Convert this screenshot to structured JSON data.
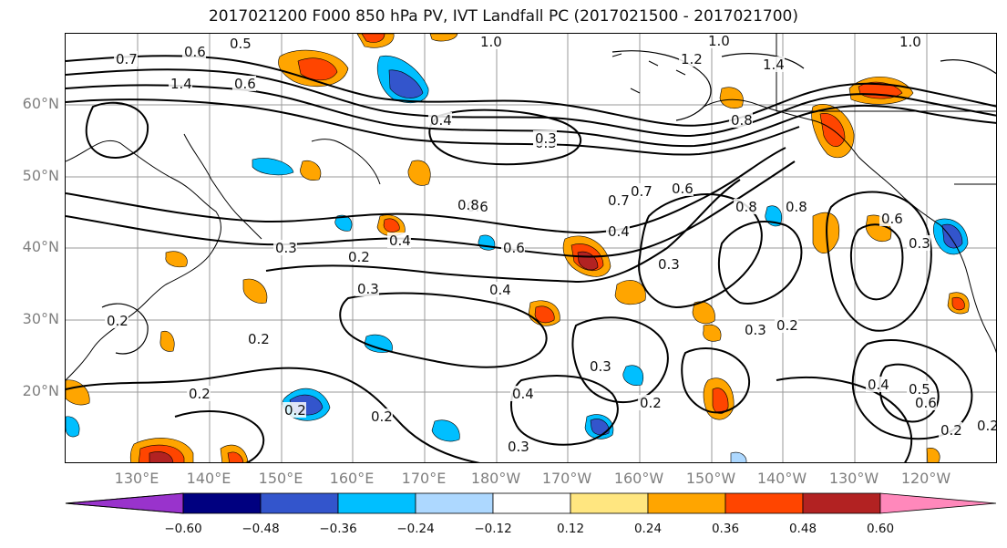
{
  "title": "2017021200 F000 850 hPa PV, IVT Landfall PC (2017021500 - 2017021700)",
  "latitude_labels": [
    "60°N",
    "50°N",
    "40°N",
    "30°N",
    "20°N"
  ],
  "longitude_labels": [
    "130°E",
    "140°E",
    "150°E",
    "160°E",
    "170°E",
    "180°W",
    "170°W",
    "160°W",
    "150°W",
    "140°W",
    "130°W",
    "120°W"
  ],
  "colorbar": {
    "ticks": [
      "−0.60",
      "−0.48",
      "−0.36",
      "−0.24",
      "−0.12",
      "0.12",
      "0.24",
      "0.36",
      "0.48",
      "0.60"
    ],
    "colors": [
      "#9933cc",
      "#000080",
      "#3355cc",
      "#00bfff",
      "#add8ff",
      "#ffffff",
      "#ffe680",
      "#ffa500",
      "#ff4500",
      "#b22222",
      "#ff88bb"
    ]
  },
  "contour_labels": [
    "0.5",
    "0.6",
    "0.7",
    "1.4",
    "1.0",
    "0.6",
    "0.4",
    "0.3",
    "0.6",
    "0.8",
    "1.0",
    "1.2",
    "1.4",
    "1.0",
    "0.3",
    "0.7",
    "0.7",
    "0.6",
    "0.4",
    "0.3",
    "0.2",
    "0.8",
    "0.4",
    "0.3",
    "0.8",
    "0.6",
    "0.3",
    "0.2",
    "0.2",
    "0.3",
    "0.3",
    "0.4",
    "0.2",
    "0.3",
    "0.2",
    "0.2",
    "0.3",
    "0.4",
    "0.2",
    "0.5",
    "0.4",
    "0.6",
    "0.2",
    "0.2",
    "0.2",
    "0.8",
    "0.6"
  ]
}
